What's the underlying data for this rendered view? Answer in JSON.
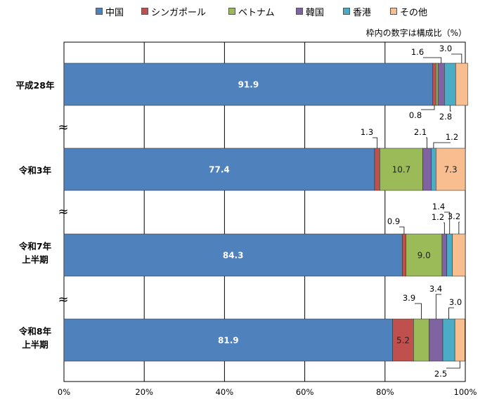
{
  "colors": {
    "中国": "#4f81bd",
    "シンガポール": "#c0504d",
    "ベトナム": "#9bbb59",
    "韓国": "#8064a2",
    "香港": "#4bacc6",
    "その他": "#f9be8f"
  },
  "legend_entries": [
    "中国",
    "シンガポール",
    "ベトナム",
    "韓国",
    "香港",
    "その他"
  ],
  "note": "枠内の数字は構成比（%）",
  "break_mark": "≈",
  "chart_data": {
    "type": "bar",
    "orientation": "horizontal",
    "stacked": true,
    "categories": [
      "平成28年",
      "令和3年",
      "令和7年\n上半期",
      "令和8年\n上半期"
    ],
    "series": [
      {
        "name": "中国",
        "values": [
          91.9,
          77.4,
          84.3,
          81.9
        ]
      },
      {
        "name": "シンガポール",
        "values": [
          0.8,
          1.3,
          0.9,
          5.2
        ]
      },
      {
        "name": "ベトナム",
        "values": [
          0.5,
          10.7,
          9.0,
          3.9
        ]
      },
      {
        "name": "韓国",
        "values": [
          1.6,
          2.1,
          1.2,
          3.4
        ]
      },
      {
        "name": "香港",
        "values": [
          2.8,
          1.2,
          1.4,
          3.0
        ]
      },
      {
        "name": "その他",
        "values": [
          3.0,
          7.3,
          3.2,
          2.5
        ]
      }
    ],
    "xlim": [
      0,
      100
    ],
    "xticks": [
      "0%",
      "20%",
      "40%",
      "60%",
      "80%",
      "100%"
    ],
    "grid": true,
    "legend_position": "top",
    "data_labels": [
      {
        "category": 0,
        "series": 0,
        "text": "91.9",
        "style": "inside-white"
      },
      {
        "category": 0,
        "series": 3,
        "text": "1.6",
        "style": "above"
      },
      {
        "category": 0,
        "series": 5,
        "text": "3.0",
        "style": "above"
      },
      {
        "category": 0,
        "series": 1,
        "text": "0.8",
        "style": "below"
      },
      {
        "category": 0,
        "series": 4,
        "text": "2.8",
        "style": "below"
      },
      {
        "category": 1,
        "series": 0,
        "text": "77.4",
        "style": "inside-white"
      },
      {
        "category": 1,
        "series": 1,
        "text": "1.3",
        "style": "above"
      },
      {
        "category": 1,
        "series": 2,
        "text": "10.7",
        "style": "inside-dark"
      },
      {
        "category": 1,
        "series": 3,
        "text": "2.1",
        "style": "above"
      },
      {
        "category": 1,
        "series": 4,
        "text": "1.2",
        "style": "above"
      },
      {
        "category": 1,
        "series": 5,
        "text": "7.3",
        "style": "inside-dark"
      },
      {
        "category": 2,
        "series": 0,
        "text": "84.3",
        "style": "inside-white"
      },
      {
        "category": 2,
        "series": 1,
        "text": "0.9",
        "style": "above"
      },
      {
        "category": 2,
        "series": 2,
        "text": "9.0",
        "style": "inside-dark"
      },
      {
        "category": 2,
        "series": 3,
        "text": "1.2",
        "style": "above"
      },
      {
        "category": 2,
        "series": 4,
        "text": "1.4",
        "style": "above"
      },
      {
        "category": 2,
        "series": 5,
        "text": "3.2",
        "style": "above"
      },
      {
        "category": 3,
        "series": 0,
        "text": "81.9",
        "style": "inside-white"
      },
      {
        "category": 3,
        "series": 1,
        "text": "5.2",
        "style": "inside-dark"
      },
      {
        "category": 3,
        "series": 2,
        "text": "3.9",
        "style": "above"
      },
      {
        "category": 3,
        "series": 3,
        "text": "3.4",
        "style": "above"
      },
      {
        "category": 3,
        "series": 4,
        "text": "3.0",
        "style": "above"
      },
      {
        "category": 3,
        "series": 5,
        "text": "2.5",
        "style": "below"
      }
    ]
  }
}
